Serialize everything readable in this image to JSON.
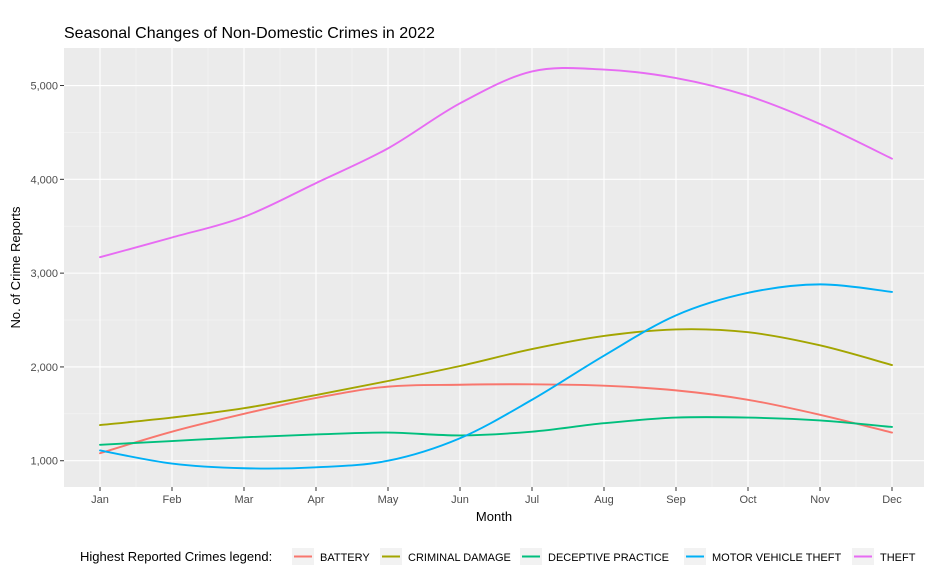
{
  "chart_data": {
    "type": "line",
    "title": "Seasonal Changes of Non-Domestic Crimes in 2022",
    "xlabel": "Month",
    "ylabel": "No. of Crime Reports",
    "categories": [
      "Jan",
      "Feb",
      "Mar",
      "Apr",
      "May",
      "Jun",
      "Jul",
      "Aug",
      "Sep",
      "Oct",
      "Nov",
      "Dec"
    ],
    "y_ticks": [
      1000,
      2000,
      3000,
      4000,
      5000
    ],
    "y_tick_labels": [
      "1,000",
      "2,000",
      "3,000",
      "4,000",
      "5,000"
    ],
    "ylim": [
      720,
      5400
    ],
    "grid": true,
    "legend": {
      "title": "Highest Reported Crimes legend:",
      "position": "bottom"
    },
    "series": [
      {
        "name": "BATTERY",
        "color": "#F8766D",
        "values": [
          1080,
          1310,
          1500,
          1670,
          1790,
          1810,
          1815,
          1800,
          1750,
          1650,
          1490,
          1300
        ]
      },
      {
        "name": "CRIMINAL DAMAGE",
        "color": "#A3A500",
        "values": [
          1380,
          1460,
          1560,
          1700,
          1850,
          2010,
          2190,
          2330,
          2400,
          2370,
          2230,
          2020
        ]
      },
      {
        "name": "DECEPTIVE PRACTICE",
        "color": "#00BF7D",
        "values": [
          1170,
          1210,
          1250,
          1280,
          1300,
          1270,
          1310,
          1400,
          1460,
          1460,
          1430,
          1360
        ]
      },
      {
        "name": "MOTOR VEHICLE THEFT",
        "color": "#00B0F6",
        "values": [
          1110,
          970,
          920,
          930,
          1000,
          1240,
          1650,
          2120,
          2550,
          2790,
          2880,
          2800
        ]
      },
      {
        "name": "THEFT",
        "color": "#E76BF3",
        "values": [
          3170,
          3380,
          3600,
          3960,
          4330,
          4810,
          5150,
          5170,
          5080,
          4890,
          4590,
          4220
        ]
      }
    ]
  }
}
